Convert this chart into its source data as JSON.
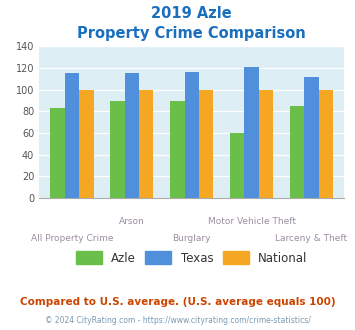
{
  "title_line1": "2019 Azle",
  "title_line2": "Property Crime Comparison",
  "azle_values": [
    83,
    89,
    89,
    60,
    85
  ],
  "texas_values": [
    115,
    115,
    116,
    121,
    112
  ],
  "national_values": [
    100,
    100,
    100,
    100,
    100
  ],
  "bar_colors": {
    "azle": "#6abf4b",
    "texas": "#4f8fdc",
    "national": "#f5a623"
  },
  "ylim": [
    0,
    140
  ],
  "yticks": [
    0,
    20,
    40,
    60,
    80,
    100,
    120,
    140
  ],
  "title_color": "#1a6fbf",
  "bg_color": "#ddeef5",
  "x_label_color": "#9b8ea0",
  "top_row_labels": {
    "1": "Arson",
    "3": "Motor Vehicle Theft"
  },
  "bot_row_labels": {
    "0": "All Property Crime",
    "2": "Burglary",
    "4": "Larceny & Theft"
  },
  "footer_text": "Compared to U.S. average. (U.S. average equals 100)",
  "footer_color": "#cc4400",
  "copyright_text": "© 2024 CityRating.com - https://www.cityrating.com/crime-statistics/",
  "copyright_color": "#7a9ab5",
  "legend_labels": [
    "Azle",
    "Texas",
    "National"
  ],
  "legend_text_color": "#333333"
}
